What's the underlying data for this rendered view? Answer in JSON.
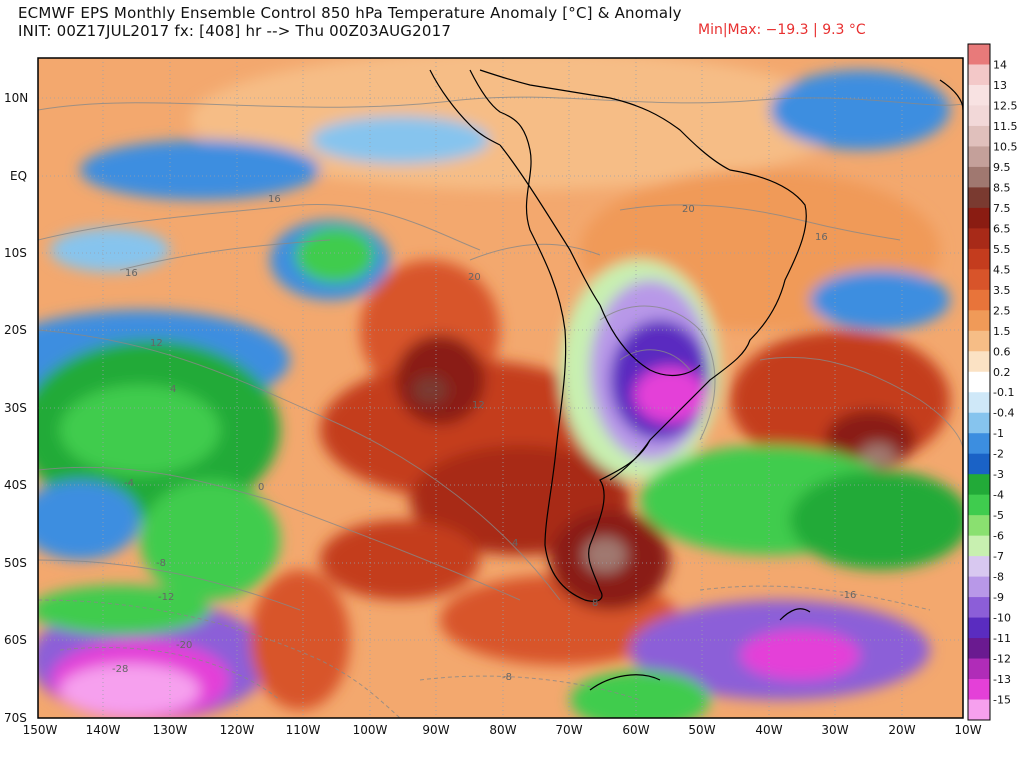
{
  "header": {
    "title": "ECMWF EPS Monthly Ensemble Control 850 hPa Temperature Anomaly [°C] & Anomaly",
    "subtitle": "INIT: 00Z17JUL2017  fx: [408] hr --> Thu 00Z03AUG2017",
    "minmax": "Min|Max: −19.3 | 9.3 °C"
  },
  "map": {
    "lat_labels": [
      "10N",
      "EQ",
      "10S",
      "20S",
      "30S",
      "40S",
      "50S",
      "60S",
      "70S"
    ],
    "lon_labels": [
      "150W",
      "140W",
      "130W",
      "120W",
      "110W",
      "100W",
      "90W",
      "80W",
      "70W",
      "60W",
      "50W",
      "40W",
      "30W",
      "20W",
      "10W"
    ],
    "contour_labels": [
      "16",
      "16",
      "20",
      "20",
      "16",
      "12",
      "4",
      "-4",
      "0",
      "-8",
      "-12",
      "-20",
      "-28",
      "12",
      "-8",
      "4",
      "-16",
      "8"
    ]
  },
  "colorbar": {
    "labels": [
      "14",
      "13",
      "12.5",
      "11.5",
      "10.5",
      "9.5",
      "8.5",
      "7.5",
      "6.5",
      "5.5",
      "4.5",
      "3.5",
      "2.5",
      "1.5",
      "0.6",
      "0.2",
      "-0.1",
      "-0.4",
      "-1",
      "-2",
      "-3",
      "-4",
      "-5",
      "-6",
      "-7",
      "-8",
      "-9",
      "-10",
      "-11",
      "-12",
      "-13",
      "-15"
    ],
    "colors": [
      "#e87a7a",
      "#f3c8c8",
      "#f8e2e2",
      "#f2d8d8",
      "#e0c0bc",
      "#c4a09a",
      "#a07870",
      "#7a3a30",
      "#8a1c12",
      "#a82a18",
      "#c43c1e",
      "#d8542a",
      "#e8743a",
      "#f09a58",
      "#f6bd86",
      "#fbe2c4",
      "#ffffff",
      "#cfe8f8",
      "#86c4ee",
      "#3c8ee0",
      "#1a62c6",
      "#22aa38",
      "#3fcc4e",
      "#8ae070",
      "#c8f0b0",
      "#d8c8f0",
      "#b898e8",
      "#8c5ed8",
      "#5a2cc0",
      "#6a1a90",
      "#b02cb8",
      "#e440d8",
      "#f6a0ee"
    ]
  }
}
